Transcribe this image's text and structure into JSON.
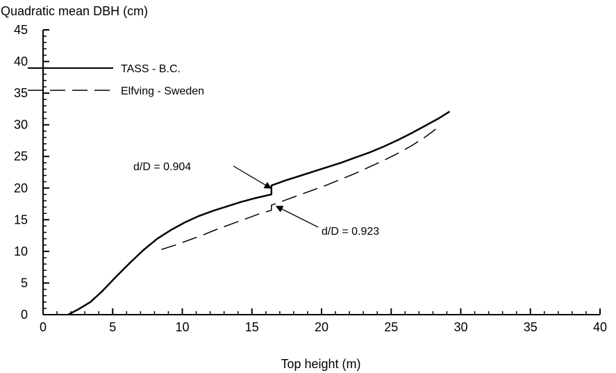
{
  "chart_data": {
    "type": "line",
    "title": "",
    "ylabel": "Quadratic mean DBH (cm)",
    "xlabel": "Top height (m)",
    "xlim": [
      0,
      40
    ],
    "ylim": [
      0,
      45
    ],
    "xticks": [
      0,
      5,
      10,
      15,
      20,
      25,
      30,
      35,
      40
    ],
    "yticks": [
      0,
      5,
      10,
      15,
      20,
      25,
      30,
      35,
      40,
      45
    ],
    "grid": false,
    "legend_position": "top-left",
    "series": [
      {
        "name": "TASS - B.C.",
        "style": "solid",
        "color": "#000000",
        "x": [
          1.8,
          2.5,
          3.4,
          4.2,
          5.2,
          6.2,
          7.2,
          8.2,
          9.2,
          10.2,
          11.2,
          12.2,
          13.2,
          14.2,
          15.2,
          16.4,
          16.4,
          17.4,
          18.4,
          19.4,
          20.4,
          21.4,
          22.4,
          23.4,
          24.4,
          25.4,
          26.4,
          27.4,
          28.4,
          29.2
        ],
        "y": [
          0,
          0.8,
          2.0,
          3.6,
          5.9,
          8.1,
          10.2,
          12.0,
          13.4,
          14.6,
          15.6,
          16.4,
          17.1,
          17.8,
          18.4,
          19.0,
          20.4,
          21.2,
          21.9,
          22.6,
          23.3,
          24.0,
          24.8,
          25.6,
          26.5,
          27.5,
          28.6,
          29.8,
          31.0,
          32.1
        ]
      },
      {
        "name": "Elfving - Sweden",
        "style": "dashed",
        "color": "#000000",
        "x": [
          8.5,
          9.5,
          10.5,
          11.5,
          12.5,
          13.5,
          14.5,
          15.5,
          16.4,
          16.4,
          17.4,
          18.4,
          19.4,
          20.4,
          21.4,
          22.4,
          23.4,
          24.4,
          25.4,
          26.4,
          27.4,
          28.2
        ],
        "y": [
          10.3,
          11.0,
          11.8,
          12.6,
          13.5,
          14.3,
          15.1,
          15.9,
          16.5,
          17.3,
          18.1,
          18.9,
          19.7,
          20.5,
          21.4,
          22.3,
          23.3,
          24.3,
          25.4,
          26.6,
          28.0,
          29.3
        ]
      }
    ],
    "annotations": [
      {
        "text": "d/D = 0.904",
        "x": 16.4,
        "y": 19.8
      },
      {
        "text": "d/D = 0.923",
        "x": 16.4,
        "y": 16.9
      }
    ]
  }
}
